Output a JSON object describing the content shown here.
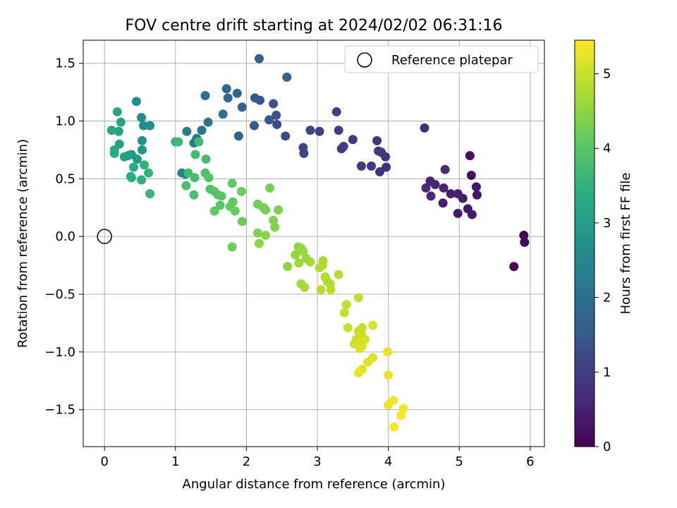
{
  "chart_data": {
    "type": "scatter",
    "title": "FOV centre drift starting at 2024/02/02 06:31:16",
    "xlabel": "Angular distance from reference (arcmin)",
    "ylabel": "Rotation from reference (arcmin)",
    "xlim": [
      -0.3,
      6.2
    ],
    "ylim": [
      -1.82,
      1.7
    ],
    "x_ticks": [
      0,
      1,
      2,
      3,
      4,
      5,
      6
    ],
    "x_tick_labels": [
      "0",
      "1",
      "2",
      "3",
      "4",
      "5",
      "6"
    ],
    "y_ticks": [
      -1.5,
      -1.0,
      -0.5,
      0.0,
      0.5,
      1.0,
      1.5
    ],
    "y_tick_labels": [
      "−1.5",
      "−1.0",
      "−0.5",
      "0.0",
      "0.5",
      "1.0",
      "1.5"
    ],
    "grid": true,
    "legend": {
      "position": "top-right",
      "entries": [
        {
          "label": "Reference platepar",
          "marker": "open-circle"
        }
      ]
    },
    "reference_point": {
      "x": 0,
      "y": 0
    },
    "colorbar": {
      "label": "Hours from first FF file",
      "colormap": "viridis",
      "range": [
        0,
        5.45
      ],
      "ticks": [
        0,
        1,
        2,
        3,
        4,
        5
      ],
      "tick_labels": [
        "0",
        "1",
        "2",
        "3",
        "4",
        "5"
      ]
    },
    "points": [
      {
        "x": 5.91,
        "y": 0.01,
        "t": 0.03
      },
      {
        "x": 5.92,
        "y": -0.05,
        "t": 0.05
      },
      {
        "x": 5.77,
        "y": -0.26,
        "t": 0.08
      },
      {
        "x": 5.15,
        "y": 0.7,
        "t": 0.25
      },
      {
        "x": 5.17,
        "y": 0.53,
        "t": 0.28
      },
      {
        "x": 5.24,
        "y": 0.43,
        "t": 0.3
      },
      {
        "x": 5.25,
        "y": 0.36,
        "t": 0.32
      },
      {
        "x": 5.12,
        "y": 0.24,
        "t": 0.35
      },
      {
        "x": 5.18,
        "y": 0.19,
        "t": 0.38
      },
      {
        "x": 4.98,
        "y": 0.2,
        "t": 0.4
      },
      {
        "x": 5.05,
        "y": 0.33,
        "t": 0.42
      },
      {
        "x": 4.98,
        "y": 0.37,
        "t": 0.45
      },
      {
        "x": 4.88,
        "y": 0.37,
        "t": 0.48
      },
      {
        "x": 4.77,
        "y": 0.29,
        "t": 0.5
      },
      {
        "x": 4.78,
        "y": 0.42,
        "t": 0.52
      },
      {
        "x": 4.66,
        "y": 0.45,
        "t": 0.55
      },
      {
        "x": 4.59,
        "y": 0.48,
        "t": 0.58
      },
      {
        "x": 4.6,
        "y": 0.35,
        "t": 0.6
      },
      {
        "x": 4.53,
        "y": 0.42,
        "t": 0.62
      },
      {
        "x": 4.8,
        "y": 0.58,
        "t": 0.65
      },
      {
        "x": 4.51,
        "y": 0.94,
        "t": 0.68
      },
      {
        "x": 3.97,
        "y": 0.6,
        "t": 0.75
      },
      {
        "x": 3.88,
        "y": 0.56,
        "t": 0.78
      },
      {
        "x": 3.96,
        "y": 0.69,
        "t": 0.8
      },
      {
        "x": 3.9,
        "y": 0.73,
        "t": 0.82
      },
      {
        "x": 3.86,
        "y": 0.74,
        "t": 0.84
      },
      {
        "x": 3.84,
        "y": 0.83,
        "t": 0.86
      },
      {
        "x": 3.76,
        "y": 0.61,
        "t": 0.88
      },
      {
        "x": 3.62,
        "y": 0.61,
        "t": 0.9
      },
      {
        "x": 3.5,
        "y": 0.84,
        "t": 0.93
      },
      {
        "x": 3.37,
        "y": 0.78,
        "t": 0.96
      },
      {
        "x": 3.34,
        "y": 0.76,
        "t": 0.98
      },
      {
        "x": 3.3,
        "y": 0.92,
        "t": 1.0
      },
      {
        "x": 3.27,
        "y": 1.08,
        "t": 1.02
      },
      {
        "x": 3.03,
        "y": 0.91,
        "t": 1.05
      },
      {
        "x": 2.9,
        "y": 0.92,
        "t": 1.08
      },
      {
        "x": 2.8,
        "y": 0.77,
        "t": 1.1
      },
      {
        "x": 2.81,
        "y": 0.72,
        "t": 1.12
      },
      {
        "x": 2.55,
        "y": 0.87,
        "t": 1.2
      },
      {
        "x": 2.43,
        "y": 0.97,
        "t": 1.25
      },
      {
        "x": 2.42,
        "y": 1.05,
        "t": 1.3
      },
      {
        "x": 2.38,
        "y": 1.15,
        "t": 1.35
      },
      {
        "x": 2.32,
        "y": 1.01,
        "t": 1.4
      },
      {
        "x": 2.19,
        "y": 1.18,
        "t": 1.45
      },
      {
        "x": 2.12,
        "y": 1.2,
        "t": 1.5
      },
      {
        "x": 2.11,
        "y": 0.96,
        "t": 1.55
      },
      {
        "x": 2.18,
        "y": 1.54,
        "t": 1.6
      },
      {
        "x": 2.57,
        "y": 1.38,
        "t": 1.65
      },
      {
        "x": 1.94,
        "y": 1.12,
        "t": 1.7
      },
      {
        "x": 1.89,
        "y": 0.87,
        "t": 1.75
      },
      {
        "x": 1.87,
        "y": 1.24,
        "t": 1.8
      },
      {
        "x": 1.74,
        "y": 1.2,
        "t": 1.85
      },
      {
        "x": 1.72,
        "y": 1.28,
        "t": 1.9
      },
      {
        "x": 1.67,
        "y": 1.06,
        "t": 1.95
      },
      {
        "x": 1.42,
        "y": 1.22,
        "t": 2.0
      },
      {
        "x": 1.46,
        "y": 0.99,
        "t": 2.05
      },
      {
        "x": 1.37,
        "y": 0.92,
        "t": 2.1
      },
      {
        "x": 1.3,
        "y": 0.85,
        "t": 2.15
      },
      {
        "x": 1.26,
        "y": 0.81,
        "t": 2.2
      },
      {
        "x": 1.16,
        "y": 0.91,
        "t": 2.25
      },
      {
        "x": 1.14,
        "y": 0.54,
        "t": 2.4
      },
      {
        "x": 1.09,
        "y": 0.55,
        "t": 2.45
      },
      {
        "x": 0.64,
        "y": 0.96,
        "t": 2.6
      },
      {
        "x": 0.55,
        "y": 0.96,
        "t": 2.65
      },
      {
        "x": 0.52,
        "y": 1.03,
        "t": 2.7
      },
      {
        "x": 0.45,
        "y": 1.17,
        "t": 2.75
      },
      {
        "x": 0.53,
        "y": 0.83,
        "t": 2.8
      },
      {
        "x": 0.53,
        "y": 0.75,
        "t": 2.85
      },
      {
        "x": 0.46,
        "y": 0.67,
        "t": 2.9
      },
      {
        "x": 0.38,
        "y": 0.71,
        "t": 2.95
      },
      {
        "x": 0.33,
        "y": 0.7,
        "t": 3.0
      },
      {
        "x": 0.28,
        "y": 0.69,
        "t": 3.05
      },
      {
        "x": 0.21,
        "y": 0.8,
        "t": 3.1
      },
      {
        "x": 0.2,
        "y": 0.91,
        "t": 3.15
      },
      {
        "x": 0.18,
        "y": 1.08,
        "t": 3.2
      },
      {
        "x": 0.23,
        "y": 0.99,
        "t": 3.22
      },
      {
        "x": 0.1,
        "y": 0.92,
        "t": 3.25
      },
      {
        "x": 0.14,
        "y": 0.75,
        "t": 3.3
      },
      {
        "x": 0.14,
        "y": 0.72,
        "t": 3.33
      },
      {
        "x": 0.41,
        "y": 0.6,
        "t": 3.35
      },
      {
        "x": 0.38,
        "y": 0.51,
        "t": 3.38
      },
      {
        "x": 0.37,
        "y": 0.52,
        "t": 3.4
      },
      {
        "x": 0.52,
        "y": 0.49,
        "t": 3.45
      },
      {
        "x": 0.56,
        "y": 0.62,
        "t": 3.5
      },
      {
        "x": 0.62,
        "y": 0.55,
        "t": 3.55
      },
      {
        "x": 0.64,
        "y": 0.37,
        "t": 3.6
      },
      {
        "x": 1.0,
        "y": 0.82,
        "t": 3.62
      },
      {
        "x": 1.04,
        "y": 0.82,
        "t": 3.65
      },
      {
        "x": 1.18,
        "y": 0.55,
        "t": 3.7
      },
      {
        "x": 1.33,
        "y": 0.82,
        "t": 3.72
      },
      {
        "x": 1.28,
        "y": 0.71,
        "t": 3.75
      },
      {
        "x": 1.43,
        "y": 0.67,
        "t": 3.78
      },
      {
        "x": 1.27,
        "y": 0.51,
        "t": 3.8
      },
      {
        "x": 1.15,
        "y": 0.44,
        "t": 3.82
      },
      {
        "x": 1.26,
        "y": 0.36,
        "t": 3.85
      },
      {
        "x": 1.42,
        "y": 0.55,
        "t": 3.88
      },
      {
        "x": 1.47,
        "y": 0.51,
        "t": 3.9
      },
      {
        "x": 1.49,
        "y": 0.41,
        "t": 3.92
      },
      {
        "x": 1.55,
        "y": 0.39,
        "t": 3.95
      },
      {
        "x": 1.6,
        "y": 0.36,
        "t": 3.98
      },
      {
        "x": 1.65,
        "y": 0.35,
        "t": 4.0
      },
      {
        "x": 1.63,
        "y": 0.27,
        "t": 4.02
      },
      {
        "x": 1.55,
        "y": 0.22,
        "t": 4.05
      },
      {
        "x": 1.8,
        "y": 0.46,
        "t": 4.08
      },
      {
        "x": 1.81,
        "y": 0.3,
        "t": 4.1
      },
      {
        "x": 1.77,
        "y": 0.26,
        "t": 4.12
      },
      {
        "x": 1.84,
        "y": 0.22,
        "t": 4.15
      },
      {
        "x": 1.93,
        "y": 0.39,
        "t": 4.18
      },
      {
        "x": 1.94,
        "y": 0.13,
        "t": 4.2
      },
      {
        "x": 1.8,
        "y": -0.09,
        "t": 4.22
      },
      {
        "x": 2.16,
        "y": 0.28,
        "t": 4.25
      },
      {
        "x": 2.24,
        "y": 0.25,
        "t": 4.28
      },
      {
        "x": 2.27,
        "y": 0.23,
        "t": 4.3
      },
      {
        "x": 2.33,
        "y": 0.42,
        "t": 4.32
      },
      {
        "x": 2.45,
        "y": 0.23,
        "t": 4.35
      },
      {
        "x": 2.38,
        "y": 0.14,
        "t": 4.38
      },
      {
        "x": 2.4,
        "y": 0.08,
        "t": 4.4
      },
      {
        "x": 2.16,
        "y": 0.03,
        "t": 4.42
      },
      {
        "x": 2.27,
        "y": 0.01,
        "t": 4.45
      },
      {
        "x": 2.18,
        "y": -0.06,
        "t": 4.48
      },
      {
        "x": 2.58,
        "y": -0.26,
        "t": 4.5
      },
      {
        "x": 2.73,
        "y": -0.09,
        "t": 4.52
      },
      {
        "x": 2.69,
        "y": -0.16,
        "t": 4.55
      },
      {
        "x": 2.77,
        "y": -0.1,
        "t": 4.57
      },
      {
        "x": 2.8,
        "y": -0.13,
        "t": 4.6
      },
      {
        "x": 2.84,
        "y": -0.19,
        "t": 4.62
      },
      {
        "x": 2.74,
        "y": -0.23,
        "t": 4.64
      },
      {
        "x": 2.9,
        "y": -0.22,
        "t": 4.66
      },
      {
        "x": 2.77,
        "y": -0.41,
        "t": 4.68
      },
      {
        "x": 2.82,
        "y": -0.44,
        "t": 4.7
      },
      {
        "x": 3.08,
        "y": -0.21,
        "t": 4.72
      },
      {
        "x": 3.07,
        "y": -0.25,
        "t": 4.74
      },
      {
        "x": 3.03,
        "y": -0.27,
        "t": 4.76
      },
      {
        "x": 3.11,
        "y": -0.35,
        "t": 4.78
      },
      {
        "x": 3.14,
        "y": -0.39,
        "t": 4.8
      },
      {
        "x": 3.18,
        "y": -0.41,
        "t": 4.82
      },
      {
        "x": 3.3,
        "y": -0.33,
        "t": 4.84
      },
      {
        "x": 3.05,
        "y": -0.46,
        "t": 4.86
      },
      {
        "x": 3.19,
        "y": -0.46,
        "t": 4.88
      },
      {
        "x": 3.58,
        "y": -0.53,
        "t": 4.9
      },
      {
        "x": 3.41,
        "y": -0.59,
        "t": 4.92
      },
      {
        "x": 3.38,
        "y": -0.66,
        "t": 4.94
      },
      {
        "x": 3.58,
        "y": -0.82,
        "t": 4.96
      },
      {
        "x": 3.63,
        "y": -0.79,
        "t": 4.98
      },
      {
        "x": 3.43,
        "y": -0.79,
        "t": 5.0
      },
      {
        "x": 3.62,
        "y": -0.84,
        "t": 5.02
      },
      {
        "x": 3.55,
        "y": -0.89,
        "t": 5.04
      },
      {
        "x": 3.67,
        "y": -0.89,
        "t": 5.06
      },
      {
        "x": 3.58,
        "y": -0.92,
        "t": 5.08
      },
      {
        "x": 3.52,
        "y": -0.93,
        "t": 5.1
      },
      {
        "x": 3.63,
        "y": -0.95,
        "t": 5.12
      },
      {
        "x": 3.6,
        "y": -0.97,
        "t": 5.14
      },
      {
        "x": 3.78,
        "y": -0.77,
        "t": 5.16
      },
      {
        "x": 3.78,
        "y": -1.05,
        "t": 5.18
      },
      {
        "x": 3.71,
        "y": -1.09,
        "t": 5.2
      },
      {
        "x": 3.63,
        "y": -1.15,
        "t": 5.22
      },
      {
        "x": 3.58,
        "y": -1.18,
        "t": 5.24
      },
      {
        "x": 3.99,
        "y": -1.0,
        "t": 5.26
      },
      {
        "x": 4.0,
        "y": -1.2,
        "t": 5.3
      },
      {
        "x": 4.0,
        "y": -1.46,
        "t": 5.34
      },
      {
        "x": 4.07,
        "y": -1.42,
        "t": 5.36
      },
      {
        "x": 4.21,
        "y": -1.49,
        "t": 5.38
      },
      {
        "x": 4.18,
        "y": -1.55,
        "t": 5.4
      },
      {
        "x": 4.08,
        "y": -1.65,
        "t": 5.43
      }
    ]
  }
}
